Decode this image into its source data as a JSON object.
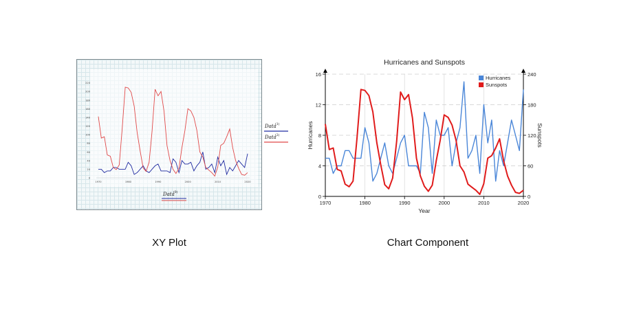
{
  "captions": {
    "left": "XY Plot",
    "right": "Chart Component"
  },
  "colors": {
    "hurricanes": "#4a86d8",
    "sunspots": "#e01b1b",
    "left_series_0": "#1f2aa0",
    "left_series_1": "#e04848"
  },
  "left_plot": {
    "legend": [
      "Data",
      "Data"
    ],
    "legend_sup": [
      "(1)",
      "(2)"
    ],
    "x_legend": "Data",
    "x_legend_sup": "(0)"
  },
  "chart_data": [
    {
      "type": "line",
      "title": "",
      "x": [
        1970,
        1971,
        1972,
        1973,
        1974,
        1975,
        1976,
        1977,
        1978,
        1979,
        1980,
        1981,
        1982,
        1983,
        1984,
        1985,
        1986,
        1987,
        1988,
        1989,
        1990,
        1991,
        1992,
        1993,
        1994,
        1995,
        1996,
        1997,
        1998,
        1999,
        2000,
        2001,
        2002,
        2003,
        2004,
        2005,
        2006,
        2007,
        2008,
        2009,
        2010,
        2011,
        2012,
        2013,
        2014,
        2015,
        2016,
        2017,
        2018,
        2019,
        2020
      ],
      "xticks": [
        1970,
        1980,
        1990,
        2000,
        2010,
        2020
      ],
      "xlim": [
        1970,
        2020
      ],
      "ylim": [
        0,
        240
      ],
      "yticks": [
        0,
        20,
        40,
        60,
        80,
        100,
        120,
        140,
        160,
        180,
        200,
        220
      ],
      "series": [
        {
          "values": [
            5,
            5,
            3,
            4,
            4,
            6,
            6,
            5,
            5,
            5,
            9,
            7,
            2,
            3,
            5,
            7,
            4,
            3,
            5,
            7,
            8,
            4,
            4,
            4,
            3,
            11,
            9,
            3,
            10,
            8,
            8,
            9,
            4,
            7,
            9,
            15,
            5,
            6,
            8,
            3,
            12,
            7,
            10,
            2,
            6,
            4,
            7,
            10,
            8,
            6,
            14
          ]
        },
        {
          "values": [
            142,
            92,
            95,
            53,
            50,
            24,
            19,
            30,
            115,
            210,
            208,
            198,
            166,
            105,
            62,
            23,
            15,
            36,
            108,
            205,
            190,
            200,
            154,
            75,
            40,
            20,
            10,
            22,
            70,
            110,
            160,
            155,
            140,
            110,
            60,
            48,
            24,
            18,
            12,
            4,
            25,
            75,
            80,
            95,
            113,
            70,
            40,
            22,
            8,
            6,
            12
          ]
        }
      ]
    },
    {
      "type": "line",
      "title": "Hurricanes and Sunspots",
      "xlabel": "Year",
      "ylabel": "Hurricanes",
      "y2label": "Sunspots",
      "x": [
        1970,
        1971,
        1972,
        1973,
        1974,
        1975,
        1976,
        1977,
        1978,
        1979,
        1980,
        1981,
        1982,
        1983,
        1984,
        1985,
        1986,
        1987,
        1988,
        1989,
        1990,
        1991,
        1992,
        1993,
        1994,
        1995,
        1996,
        1997,
        1998,
        1999,
        2000,
        2001,
        2002,
        2003,
        2004,
        2005,
        2006,
        2007,
        2008,
        2009,
        2010,
        2011,
        2012,
        2013,
        2014,
        2015,
        2016,
        2017,
        2018,
        2019,
        2020
      ],
      "xticks": [
        1970,
        1980,
        1990,
        2000,
        2010,
        2020
      ],
      "xlim": [
        1970,
        2020
      ],
      "ylim": [
        0,
        16
      ],
      "yticks": [
        0,
        4,
        8,
        12,
        16
      ],
      "y2lim": [
        0,
        240
      ],
      "y2ticks": [
        0,
        60,
        120,
        180,
        240
      ],
      "legend_position": "top-right",
      "series": [
        {
          "name": "Hurricanes",
          "axis": "left",
          "values": [
            5,
            5,
            3,
            4,
            4,
            6,
            6,
            5,
            5,
            5,
            9,
            7,
            2,
            3,
            5,
            7,
            4,
            3,
            5,
            7,
            8,
            4,
            4,
            4,
            3,
            11,
            9,
            3,
            10,
            8,
            8,
            9,
            4,
            7,
            9,
            15,
            5,
            6,
            8,
            3,
            12,
            7,
            10,
            2,
            6,
            4,
            7,
            10,
            8,
            6,
            14
          ]
        },
        {
          "name": "Sunspots",
          "axis": "right",
          "values": [
            142,
            92,
            95,
            53,
            50,
            24,
            19,
            30,
            115,
            210,
            208,
            198,
            166,
            105,
            62,
            23,
            15,
            36,
            108,
            205,
            190,
            200,
            154,
            75,
            40,
            20,
            10,
            22,
            70,
            110,
            160,
            155,
            140,
            110,
            60,
            48,
            24,
            18,
            12,
            4,
            25,
            75,
            80,
            95,
            113,
            70,
            40,
            22,
            8,
            6,
            12
          ]
        }
      ]
    }
  ]
}
